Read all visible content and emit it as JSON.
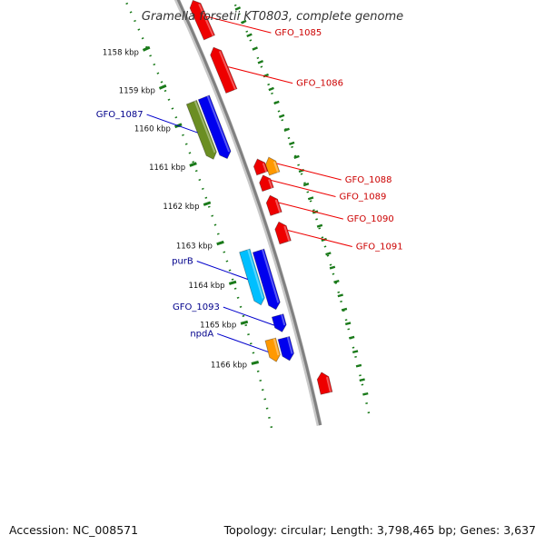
{
  "title": "Gramella forsetii KT0803, complete genome",
  "footer": {
    "accession": "Accession: NC_008571",
    "summary": "Topology: circular; Length: 3,798,465 bp; Genes: 3,637"
  },
  "colors": {
    "backbone": "#808080",
    "forward_cds": "#0000ee",
    "reverse_cds": "#ee0000",
    "rna": "#ff9900",
    "highlight_green": "#6b8e23",
    "highlight_cyan": "#00bfff",
    "tick": "#1a7a1a",
    "label_fwd": "#00008b",
    "label_rev": "#cc0000"
  },
  "ticks": [
    {
      "label": "1158 kbp",
      "kbp": 1158
    },
    {
      "label": "1159 kbp",
      "kbp": 1159
    },
    {
      "label": "1160 kbp",
      "kbp": 1160
    },
    {
      "label": "1161 kbp",
      "kbp": 1161
    },
    {
      "label": "1162 kbp",
      "kbp": 1162
    },
    {
      "label": "1163 kbp",
      "kbp": 1163
    },
    {
      "label": "1164 kbp",
      "kbp": 1164
    },
    {
      "label": "1165 kbp",
      "kbp": 1165
    },
    {
      "label": "1166 kbp",
      "kbp": 1166
    }
  ],
  "genes": [
    {
      "name": "GFO_1085",
      "strand": "reverse",
      "color": "#ee0000",
      "start": 1157.4,
      "end": 1158.35
    },
    {
      "name": "GFO_1086",
      "strand": "reverse",
      "color": "#ee0000",
      "start": 1158.6,
      "end": 1159.7
    },
    {
      "name": "GFO_1087",
      "strand": "forward",
      "color": "#6b8e23",
      "start": 1159.6,
      "end": 1161.05
    },
    {
      "name": "",
      "strand": "forward",
      "color": "#0000ee",
      "start": 1159.6,
      "end": 1161.15
    },
    {
      "name": "",
      "strand": "reverse",
      "color": "#ee0000",
      "start": 1161.4,
      "end": 1161.75
    },
    {
      "name": "GFO_1088",
      "strand": "reverse",
      "color": "#ff9900",
      "start": 1161.45,
      "end": 1161.85
    },
    {
      "name": "GFO_1089",
      "strand": "reverse",
      "color": "#ee0000",
      "start": 1161.8,
      "end": 1162.15
    },
    {
      "name": "GFO_1090",
      "strand": "reverse",
      "color": "#ee0000",
      "start": 1162.3,
      "end": 1162.75
    },
    {
      "name": "GFO_1091",
      "strand": "reverse",
      "color": "#ee0000",
      "start": 1162.95,
      "end": 1163.45
    },
    {
      "name": "purB",
      "strand": "forward",
      "color": "#00bfff",
      "start": 1163.35,
      "end": 1164.7
    },
    {
      "name": "",
      "strand": "forward",
      "color": "#0000ee",
      "start": 1163.45,
      "end": 1164.9
    },
    {
      "name": "GFO_1093",
      "strand": "forward",
      "color": "#0000ee",
      "start": 1165.05,
      "end": 1165.45
    },
    {
      "name": "npdA",
      "strand": "forward",
      "color": "#ff9900",
      "start": 1165.55,
      "end": 1166.1
    },
    {
      "name": "",
      "strand": "forward",
      "color": "#0000ee",
      "start": 1165.6,
      "end": 1166.15
    },
    {
      "name": "",
      "strand": "reverse",
      "color": "#ee0000",
      "start": 1166.6,
      "end": 1167.1
    }
  ]
}
